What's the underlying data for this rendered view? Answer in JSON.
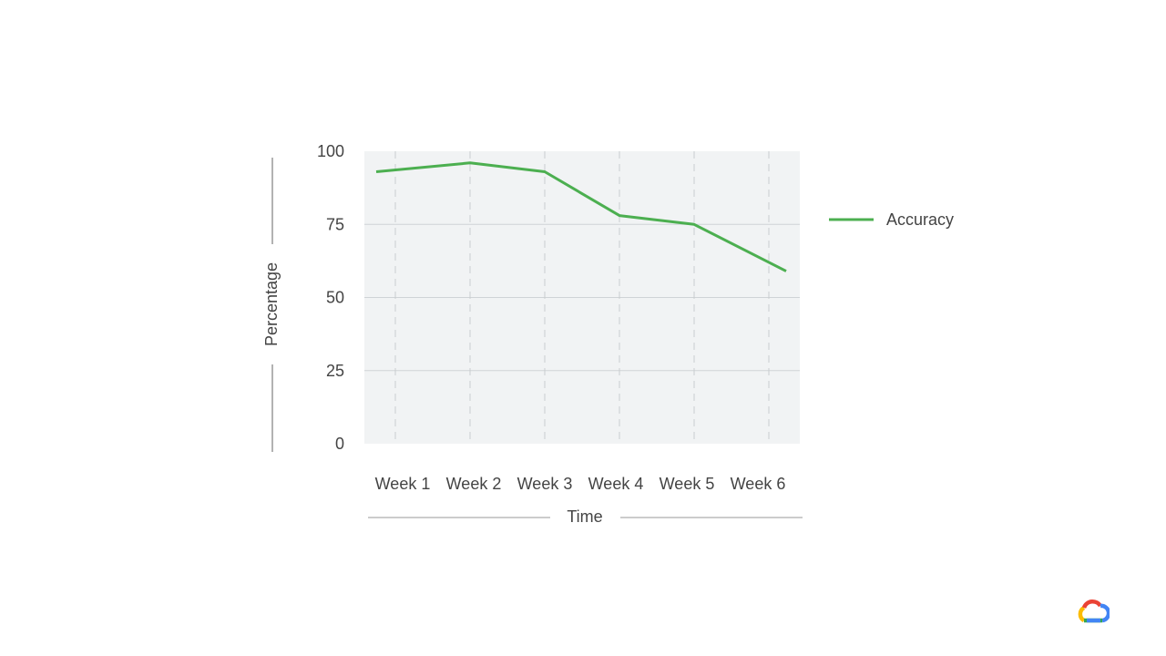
{
  "chart_data": {
    "type": "line",
    "title": "",
    "xlabel": "Time",
    "ylabel": "Percentage",
    "categories": [
      "Week 1",
      "Week 2",
      "Week 3",
      "Week 4",
      "Week 5",
      "Week 6"
    ],
    "yticks": [
      "0",
      "25",
      "50",
      "75",
      "100"
    ],
    "ylim": [
      0,
      100
    ],
    "grid": true,
    "legend_position": "right",
    "series": [
      {
        "name": "Accuracy",
        "color": "#4caf50",
        "values": [
          93,
          96,
          93,
          78,
          75,
          59
        ]
      }
    ]
  },
  "brand": {
    "logo_icon": "google-cloud-logo",
    "colors": [
      "#ea4335",
      "#fbbc04",
      "#34a853",
      "#4285f4"
    ]
  }
}
